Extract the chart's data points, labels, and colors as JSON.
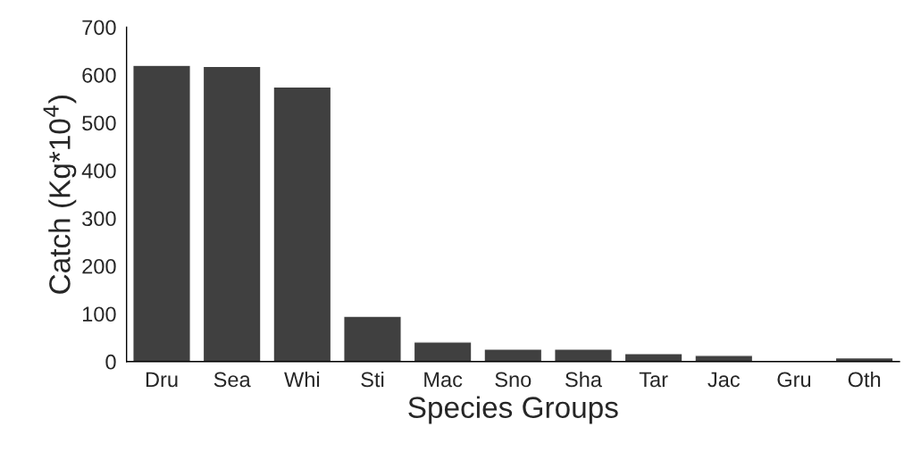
{
  "chart_data": {
    "type": "bar",
    "categories": [
      "Dru",
      "Sea",
      "Whi",
      "Sti",
      "Mac",
      "Sno",
      "Sha",
      "Tar",
      "Jac",
      "Gru",
      "Oth"
    ],
    "values": [
      620,
      618,
      575,
      95,
      41,
      26,
      26,
      17,
      13,
      2,
      8
    ],
    "color": "#404040",
    "xlabel": "Species Groups",
    "ylabel": "Catch (Kg*10$^{4}$)",
    "ylim": [
      0,
      700
    ],
    "yticks": [
      0,
      100,
      200,
      300,
      400,
      500,
      600,
      700
    ],
    "grid": false
  }
}
